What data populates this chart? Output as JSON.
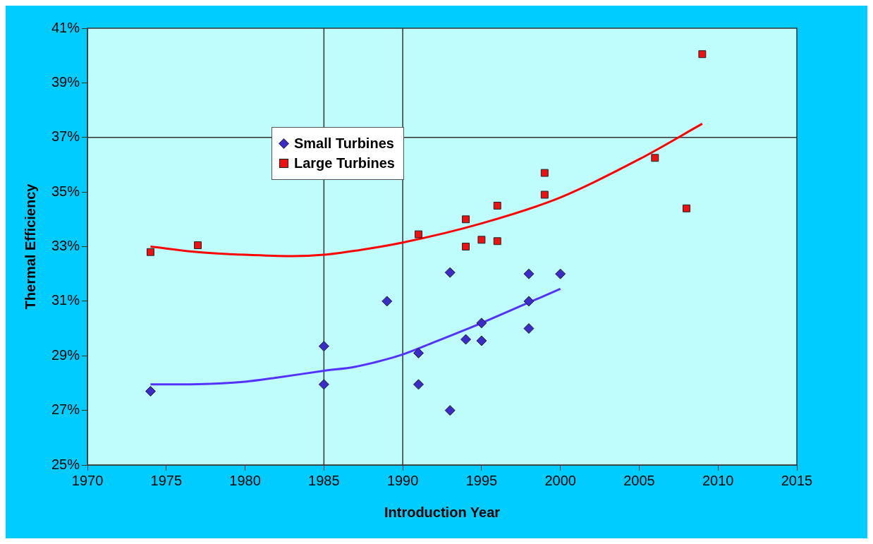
{
  "chart_data": {
    "type": "scatter",
    "xlabel": "Introduction Year",
    "ylabel": "Thermal Efficiency",
    "xlim": [
      1970,
      2015
    ],
    "xticks": [
      1970,
      1975,
      1980,
      1985,
      1990,
      1995,
      2000,
      2005,
      2010,
      2015
    ],
    "ylim": [
      25,
      41
    ],
    "yticks": [
      {
        "value": 25,
        "label": "25%"
      },
      {
        "value": 27,
        "label": "27%"
      },
      {
        "value": 29,
        "label": "29%"
      },
      {
        "value": 31,
        "label": "31%"
      },
      {
        "value": 33,
        "label": "33%"
      },
      {
        "value": 35,
        "label": "35%"
      },
      {
        "value": 37,
        "label": "37%"
      },
      {
        "value": 39,
        "label": "39%"
      },
      {
        "value": 41,
        "label": "41%"
      }
    ],
    "grid": false,
    "legend": "top left",
    "ref_lines": [
      {
        "axis": "x",
        "value": 1985,
        "color": "#333333"
      },
      {
        "axis": "x",
        "value": 1990,
        "color": "#333333"
      },
      {
        "axis": "y",
        "value": 37,
        "color": "#333333"
      }
    ],
    "series": [
      {
        "name": "Small Turbines",
        "type": "scatter",
        "marker": "diamond",
        "color": "#3b2bc8",
        "x": [
          1974,
          1985,
          1985,
          1989,
          1991,
          1991,
          1993,
          1993,
          1994,
          1995,
          1995,
          1998,
          1998,
          1998,
          2000
        ],
        "values": [
          27.7,
          29.35,
          27.95,
          31.0,
          29.1,
          27.95,
          32.05,
          27.0,
          29.6,
          30.2,
          29.55,
          32.0,
          31.0,
          30.0,
          32.0
        ]
      },
      {
        "name": "Large Turbines",
        "type": "scatter",
        "marker": "square",
        "color": "#ee1111",
        "x": [
          1974,
          1977,
          1991,
          1994,
          1994,
          1995,
          1996,
          1996,
          1999,
          1999,
          2006,
          2008,
          2009
        ],
        "values": [
          32.8,
          33.05,
          33.45,
          34.0,
          33.0,
          33.25,
          34.5,
          33.2,
          35.7,
          34.9,
          36.25,
          34.4,
          40.05
        ]
      },
      {
        "type": "line",
        "marker": "none",
        "color": "#5533ff",
        "x": [
          1974,
          1977,
          1980,
          1982,
          1985,
          1987,
          1990,
          1992,
          1995,
          1997,
          2000
        ],
        "values": [
          27.95,
          27.96,
          28.05,
          28.2,
          28.45,
          28.6,
          29.05,
          29.5,
          30.2,
          30.7,
          31.45
        ]
      },
      {
        "type": "line",
        "marker": "none",
        "color": "#ff0000",
        "x": [
          1974,
          1977,
          1980,
          1983,
          1985,
          1987,
          1990,
          1995,
          2000,
          2005,
          2009
        ],
        "values": [
          33.0,
          32.8,
          32.7,
          32.65,
          32.7,
          32.85,
          33.15,
          33.85,
          34.8,
          36.2,
          37.5
        ]
      }
    ]
  }
}
